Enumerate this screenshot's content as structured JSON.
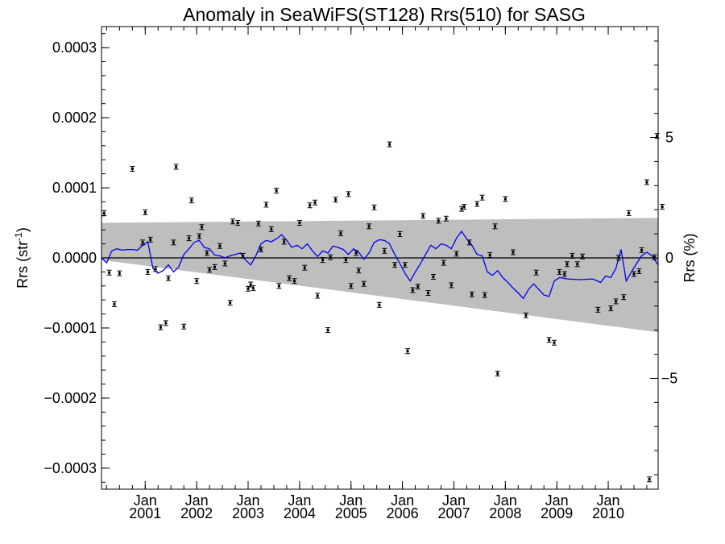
{
  "chart_data": {
    "type": "line",
    "title": "Anomaly in SeaWiFS(ST128) Rrs(510) for SASG",
    "ylabel_left": "Rrs (str",
    "ylabel_left_sup": "-1",
    "ylabel_left_close": ")",
    "ylabel_right": "Rrs (%)",
    "xlim": [
      2000.15,
      2010.97
    ],
    "ylim": [
      -0.00033,
      0.00033
    ],
    "right_axis_ylim": [
      -9.6,
      9.6
    ],
    "grid": false,
    "legend": "none",
    "colors": {
      "series_line": "#0000ee",
      "points": "#000000",
      "uncertainty_band": "#bebebe",
      "zero_line": "#000000"
    },
    "y_ticks_left": [
      {
        "value": 0.0003,
        "label": "0.0003"
      },
      {
        "value": 0.0002,
        "label": "0.0002"
      },
      {
        "value": 0.0001,
        "label": "0.0001"
      },
      {
        "value": 0.0,
        "label": "0.0000"
      },
      {
        "value": -0.0001,
        "label": "−0.0001"
      },
      {
        "value": -0.0002,
        "label": "−0.0002"
      },
      {
        "value": -0.0003,
        "label": "−0.0003"
      }
    ],
    "y_ticks_right": [
      {
        "value": 5,
        "label": "5"
      },
      {
        "value": 0,
        "label": "0"
      },
      {
        "value": -5,
        "label": "−5"
      }
    ],
    "x_ticks": [
      {
        "value": 2001.0,
        "month": "Jan",
        "year": "2001"
      },
      {
        "value": 2002.0,
        "month": "Jan",
        "year": "2002"
      },
      {
        "value": 2003.0,
        "month": "Jan",
        "year": "2003"
      },
      {
        "value": 2004.0,
        "month": "Jan",
        "year": "2004"
      },
      {
        "value": 2005.0,
        "month": "Jan",
        "year": "2005"
      },
      {
        "value": 2006.0,
        "month": "Jan",
        "year": "2006"
      },
      {
        "value": 2007.0,
        "month": "Jan",
        "year": "2007"
      },
      {
        "value": 2008.0,
        "month": "Jan",
        "year": "2008"
      },
      {
        "value": 2009.0,
        "month": "Jan",
        "year": "2009"
      },
      {
        "value": 2010.0,
        "month": "Jan",
        "year": "2010"
      }
    ],
    "band": {
      "x": [
        2000.15,
        2010.97
      ],
      "upper": [
        5e-05,
        5.7e-05
      ],
      "lower": [
        -3e-06,
        -0.000106
      ]
    },
    "series": [
      {
        "values": [
          [
            2000.15,
            0.0
          ],
          [
            2000.25,
            -7e-06
          ],
          [
            2000.35,
            1e-05
          ],
          [
            2000.45,
            1.3e-05
          ],
          [
            2000.55,
            1.1e-05
          ],
          [
            2000.65,
            1.2e-05
          ],
          [
            2000.75,
            1.2e-05
          ],
          [
            2000.85,
            1.1e-05
          ],
          [
            2000.95,
            1.8e-05
          ],
          [
            2001.05,
            2.3e-05
          ],
          [
            2001.15,
            -1.5e-05
          ],
          [
            2001.25,
            -2.2e-05
          ],
          [
            2001.35,
            -1.8e-05
          ],
          [
            2001.45,
            -1e-05
          ],
          [
            2001.55,
            -2e-05
          ],
          [
            2001.65,
            -1.3e-05
          ],
          [
            2001.75,
            5e-06
          ],
          [
            2001.85,
            1.3e-05
          ],
          [
            2001.95,
            2.2e-05
          ],
          [
            2002.05,
            2.5e-05
          ],
          [
            2002.15,
            1.5e-05
          ],
          [
            2002.25,
            1.3e-05
          ],
          [
            2002.35,
            4e-06
          ],
          [
            2002.45,
            3e-06
          ],
          [
            2002.55,
            0.0
          ],
          [
            2002.65,
            3e-06
          ],
          [
            2002.75,
            5e-06
          ],
          [
            2002.85,
            7e-06
          ],
          [
            2002.95,
            -3e-06
          ],
          [
            2003.05,
            -1e-05
          ],
          [
            2003.15,
            3e-06
          ],
          [
            2003.25,
            2e-05
          ],
          [
            2003.35,
            2.5e-05
          ],
          [
            2003.45,
            2.3e-05
          ],
          [
            2003.55,
            2.7e-05
          ],
          [
            2003.65,
            3.3e-05
          ],
          [
            2003.75,
            2.5e-05
          ],
          [
            2003.85,
            1.5e-05
          ],
          [
            2003.95,
            1.8e-05
          ],
          [
            2004.05,
            1.3e-05
          ],
          [
            2004.15,
            2e-05
          ],
          [
            2004.25,
            1e-05
          ],
          [
            2004.35,
            2e-06
          ],
          [
            2004.45,
            1e-05
          ],
          [
            2004.55,
            7e-06
          ],
          [
            2004.65,
            1.7e-05
          ],
          [
            2004.75,
            1.5e-05
          ],
          [
            2004.85,
            1.2e-05
          ],
          [
            2004.95,
            5e-06
          ],
          [
            2005.05,
            1.3e-05
          ],
          [
            2005.15,
            8e-06
          ],
          [
            2005.25,
            -2e-06
          ],
          [
            2005.35,
            7e-06
          ],
          [
            2005.45,
            2.2e-05
          ],
          [
            2005.55,
            2.6e-05
          ],
          [
            2005.65,
            2.5e-05
          ],
          [
            2005.75,
            2e-05
          ],
          [
            2005.85,
            5e-06
          ],
          [
            2005.95,
            -8e-06
          ],
          [
            2006.05,
            -2.2e-05
          ],
          [
            2006.15,
            -3.3e-05
          ],
          [
            2006.25,
            -2e-05
          ],
          [
            2006.35,
            -8e-06
          ],
          [
            2006.45,
            5e-06
          ],
          [
            2006.55,
            1.8e-05
          ],
          [
            2006.65,
            1.3e-05
          ],
          [
            2006.75,
            2e-05
          ],
          [
            2006.85,
            1.8e-05
          ],
          [
            2006.95,
            1.3e-05
          ],
          [
            2007.05,
            2.8e-05
          ],
          [
            2007.15,
            3.8e-05
          ],
          [
            2007.25,
            2.7e-05
          ],
          [
            2007.35,
            1.8e-05
          ],
          [
            2007.45,
            5e-06
          ],
          [
            2007.55,
            3e-06
          ],
          [
            2007.65,
            -2e-05
          ],
          [
            2007.75,
            -2.5e-05
          ],
          [
            2007.85,
            -1.8e-05
          ],
          [
            2007.95,
            -2.8e-05
          ],
          [
            2008.05,
            -3.5e-05
          ],
          [
            2008.15,
            -4.3e-05
          ],
          [
            2008.25,
            -5e-05
          ],
          [
            2008.35,
            -5.8e-05
          ],
          [
            2008.45,
            -4.5e-05
          ],
          [
            2008.55,
            -3.7e-05
          ],
          [
            2008.65,
            -4.5e-05
          ],
          [
            2008.75,
            -5.3e-05
          ],
          [
            2008.85,
            -5.5e-05
          ],
          [
            2008.95,
            -3.3e-05
          ],
          [
            2009.05,
            -2.8e-05
          ],
          [
            2009.2,
            -3e-05
          ],
          [
            2009.45,
            -3.1e-05
          ],
          [
            2009.7,
            -3e-05
          ],
          [
            2009.85,
            -3.5e-05
          ],
          [
            2009.95,
            -2.6e-05
          ],
          [
            2010.05,
            -2.8e-05
          ],
          [
            2010.15,
            -1.5e-05
          ],
          [
            2010.25,
            1.2e-05
          ],
          [
            2010.35,
            -3.3e-05
          ],
          [
            2010.45,
            -2e-05
          ],
          [
            2010.55,
            -8e-06
          ],
          [
            2010.65,
            3e-06
          ],
          [
            2010.75,
            8e-06
          ],
          [
            2010.85,
            3e-06
          ],
          [
            2010.97,
            -1e-05
          ]
        ]
      }
    ],
    "points": [
      [
        2000.2,
        6.4e-05
      ],
      [
        2000.3,
        -2.1e-05
      ],
      [
        2000.4,
        -6.6e-05
      ],
      [
        2000.5,
        -2.2e-05
      ],
      [
        2000.75,
        0.000127
      ],
      [
        2000.95,
        2.2e-05
      ],
      [
        2001.05,
        -2e-05
      ],
      [
        2001.0,
        6.5e-05
      ],
      [
        2001.1,
        2.6e-05
      ],
      [
        2001.2,
        -1.6e-05
      ],
      [
        2001.3,
        -9.9e-05
      ],
      [
        2001.4,
        -9.3e-05
      ],
      [
        2001.45,
        -2.9e-05
      ],
      [
        2001.55,
        2.2e-05
      ],
      [
        2001.6,
        0.00013
      ],
      [
        2001.75,
        -9.8e-05
      ],
      [
        2001.85,
        2.8e-05
      ],
      [
        2001.9,
        8.2e-05
      ],
      [
        2002.0,
        -3.3e-05
      ],
      [
        2002.05,
        3.1e-05
      ],
      [
        2002.1,
        4.4e-05
      ],
      [
        2002.2,
        7e-06
      ],
      [
        2002.25,
        -1.7e-05
      ],
      [
        2002.35,
        -1.3e-05
      ],
      [
        2002.45,
        1.7e-05
      ],
      [
        2002.55,
        -8e-06
      ],
      [
        2002.65,
        -6.4e-05
      ],
      [
        2002.7,
        5.2e-05
      ],
      [
        2002.8,
        5e-05
      ],
      [
        2002.9,
        3e-06
      ],
      [
        2003.0,
        -4.4e-05
      ],
      [
        2003.05,
        -3.8e-05
      ],
      [
        2003.1,
        -4.3e-05
      ],
      [
        2003.2,
        4.9e-05
      ],
      [
        2003.25,
        1.2e-05
      ],
      [
        2003.35,
        7.6e-05
      ],
      [
        2003.45,
        4.1e-05
      ],
      [
        2003.55,
        9.6e-05
      ],
      [
        2003.6,
        -4e-05
      ],
      [
        2003.7,
        2.3e-05
      ],
      [
        2003.8,
        -2.9e-05
      ],
      [
        2003.9,
        -3.3e-05
      ],
      [
        2004.0,
        5e-05
      ],
      [
        2004.1,
        -1.4e-05
      ],
      [
        2004.2,
        7.5e-05
      ],
      [
        2004.3,
        7.9e-05
      ],
      [
        2004.35,
        -5.4e-05
      ],
      [
        2004.45,
        -3e-06
      ],
      [
        2004.55,
        -0.000103
      ],
      [
        2004.6,
        1e-06
      ],
      [
        2004.7,
        8.3e-05
      ],
      [
        2004.8,
        3.5e-05
      ],
      [
        2004.9,
        -3e-06
      ],
      [
        2004.95,
        9.1e-05
      ],
      [
        2005.0,
        -4e-05
      ],
      [
        2005.1,
        7e-06
      ],
      [
        2005.15,
        -1.8e-05
      ],
      [
        2005.25,
        -3.7e-05
      ],
      [
        2005.35,
        4.5e-05
      ],
      [
        2005.45,
        7.2e-05
      ],
      [
        2005.55,
        -6.7e-05
      ],
      [
        2005.65,
        1e-05
      ],
      [
        2005.75,
        0.000162
      ],
      [
        2005.85,
        -1e-05
      ],
      [
        2005.95,
        3.4e-05
      ],
      [
        2006.05,
        -1e-05
      ],
      [
        2006.1,
        -0.000133
      ],
      [
        2006.2,
        -4.6e-05
      ],
      [
        2006.3,
        -4.1e-05
      ],
      [
        2006.4,
        6e-05
      ],
      [
        2006.5,
        -5e-05
      ],
      [
        2006.6,
        -2.7e-05
      ],
      [
        2006.7,
        5.3e-05
      ],
      [
        2006.8,
        -7e-06
      ],
      [
        2006.85,
        5.6e-05
      ],
      [
        2006.95,
        -3.9e-05
      ],
      [
        2007.05,
        6e-06
      ],
      [
        2007.15,
        7e-05
      ],
      [
        2007.2,
        7.3e-05
      ],
      [
        2007.3,
        2.2e-05
      ],
      [
        2007.35,
        -5.2e-05
      ],
      [
        2007.45,
        7.7e-05
      ],
      [
        2007.55,
        8.6e-05
      ],
      [
        2007.6,
        -5.3e-05
      ],
      [
        2007.7,
        4e-06
      ],
      [
        2007.8,
        4.5e-05
      ],
      [
        2007.85,
        -0.000165
      ],
      [
        2008.0,
        8.4e-05
      ],
      [
        2008.15,
        8e-06
      ],
      [
        2008.4,
        -8.2e-05
      ],
      [
        2008.6,
        -2.1e-05
      ],
      [
        2008.85,
        -0.000117
      ],
      [
        2008.95,
        -0.000121
      ],
      [
        2009.05,
        -2e-05
      ],
      [
        2009.15,
        -2.3e-05
      ],
      [
        2009.2,
        -9e-06
      ],
      [
        2009.3,
        3e-06
      ],
      [
        2009.4,
        -9e-06
      ],
      [
        2009.5,
        2e-06
      ],
      [
        2009.8,
        -7.4e-05
      ],
      [
        2010.05,
        -7.2e-05
      ],
      [
        2010.15,
        -6.2e-05
      ],
      [
        2010.2,
        0.0
      ],
      [
        2010.3,
        -5.6e-05
      ],
      [
        2010.4,
        6.4e-05
      ],
      [
        2010.5,
        -2.3e-05
      ],
      [
        2010.6,
        -1.9e-05
      ],
      [
        2010.65,
        1.1e-05
      ],
      [
        2010.75,
        0.000108
      ],
      [
        2010.8,
        -0.000316
      ],
      [
        2010.9,
        1e-06
      ],
      [
        2010.95,
        0.000174
      ],
      [
        2011.05,
        7.3e-05
      ]
    ]
  }
}
